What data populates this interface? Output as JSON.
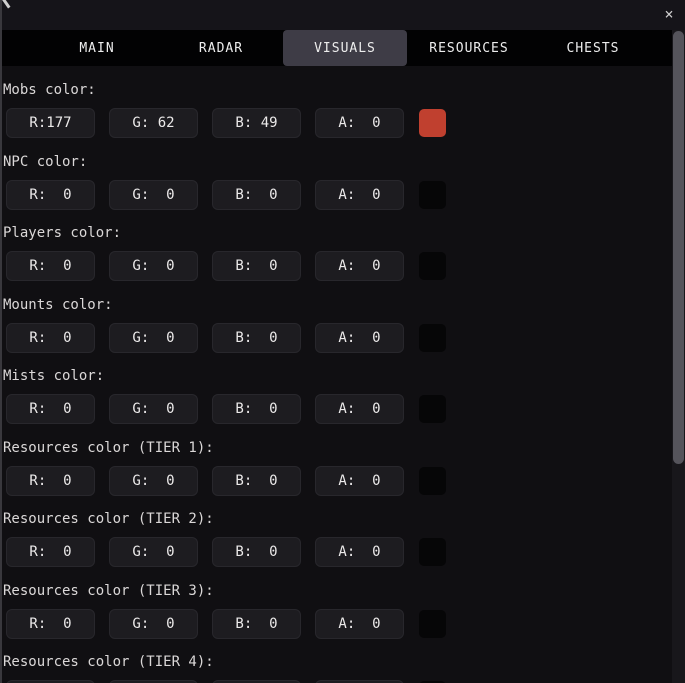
{
  "titlebar": {
    "close_label": "×"
  },
  "tab_bar": {
    "tabs": [
      {
        "label": "MAIN",
        "active": false
      },
      {
        "label": "RADAR",
        "active": false
      },
      {
        "label": "VISUALS",
        "active": true
      },
      {
        "label": "RESOURCES",
        "active": false
      },
      {
        "label": "CHESTS",
        "active": false
      }
    ]
  },
  "colors": {
    "active_tab_bg": "#3e3c46",
    "mobs_swatch": "#c0402f",
    "empty_swatch": "#060607",
    "scrollbar_thumb": "#55545b"
  },
  "panel": {
    "sections": [
      {
        "label": "Mobs color:",
        "fields": [
          "R:177",
          "G: 62",
          "B: 49",
          "A:  0"
        ],
        "swatch": "#c0402f"
      },
      {
        "label": "NPC color:",
        "fields": [
          "R:  0",
          "G:  0",
          "B:  0",
          "A:  0"
        ],
        "swatch": "#060607"
      },
      {
        "label": "Players color:",
        "fields": [
          "R:  0",
          "G:  0",
          "B:  0",
          "A:  0"
        ],
        "swatch": "#060607"
      },
      {
        "label": "Mounts color:",
        "fields": [
          "R:  0",
          "G:  0",
          "B:  0",
          "A:  0"
        ],
        "swatch": "#060607"
      },
      {
        "label": "Mists color:",
        "fields": [
          "R:  0",
          "G:  0",
          "B:  0",
          "A:  0"
        ],
        "swatch": "#060607"
      },
      {
        "label": "Resources color (TIER 1):",
        "fields": [
          "R:  0",
          "G:  0",
          "B:  0",
          "A:  0"
        ],
        "swatch": "#060607"
      },
      {
        "label": "Resources color (TIER 2):",
        "fields": [
          "R:  0",
          "G:  0",
          "B:  0",
          "A:  0"
        ],
        "swatch": "#060607"
      },
      {
        "label": "Resources color (TIER 3):",
        "fields": [
          "R:  0",
          "G:  0",
          "B:  0",
          "A:  0"
        ],
        "swatch": "#060607"
      },
      {
        "label": "Resources color (TIER 4):",
        "fields": [
          "R:  0",
          "G:  0",
          "B:  0",
          "A:  0"
        ],
        "swatch": "#060607"
      }
    ]
  },
  "field_names": [
    "r-input",
    "g-input",
    "b-input",
    "a-input"
  ]
}
